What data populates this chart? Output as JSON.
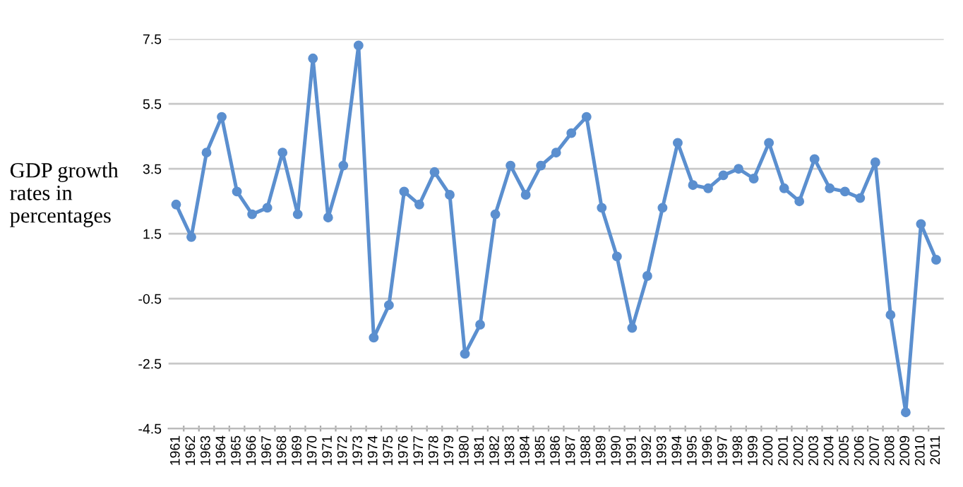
{
  "chart_data": {
    "type": "line",
    "ylabel": "GDP growth\nrates in\npercentages",
    "categories": [
      "1961",
      "1962",
      "1963",
      "1964",
      "1965",
      "1966",
      "1967",
      "1968",
      "1969",
      "1970",
      "1971",
      "1972",
      "1973",
      "1974",
      "1975",
      "1976",
      "1977",
      "1978",
      "1979",
      "1980",
      "1981",
      "1982",
      "1983",
      "1984",
      "1985",
      "1986",
      "1987",
      "1988",
      "1989",
      "1990",
      "1991",
      "1992",
      "1993",
      "1994",
      "1995",
      "1996",
      "1997",
      "1998",
      "1999",
      "2000",
      "2001",
      "2002",
      "2003",
      "2004",
      "2005",
      "2006",
      "2007",
      "2008",
      "2009",
      "2010",
      "2011"
    ],
    "series": [
      {
        "color": "#5b8fcf",
        "values": [
          2.4,
          1.4,
          4.0,
          5.1,
          2.8,
          2.1,
          2.3,
          4.0,
          2.1,
          6.9,
          2.0,
          3.6,
          7.3,
          -1.7,
          -0.7,
          2.8,
          2.4,
          3.4,
          2.7,
          -2.2,
          -1.3,
          2.1,
          3.6,
          2.7,
          3.6,
          4.0,
          4.6,
          5.1,
          2.3,
          0.8,
          -1.4,
          0.2,
          2.3,
          4.3,
          3.0,
          2.9,
          3.3,
          3.5,
          3.2,
          4.3,
          2.9,
          2.5,
          3.8,
          2.9,
          2.8,
          2.6,
          3.7,
          -1.0,
          -4.0,
          1.8,
          0.7
        ]
      }
    ],
    "ylim": [
      -4.5,
      7.5
    ],
    "yticks": [
      -4.5,
      -2.5,
      -0.5,
      1.5,
      3.5,
      5.5,
      7.5
    ],
    "grid": "y",
    "marker": "circle",
    "line_style": "solid",
    "legend": false
  }
}
